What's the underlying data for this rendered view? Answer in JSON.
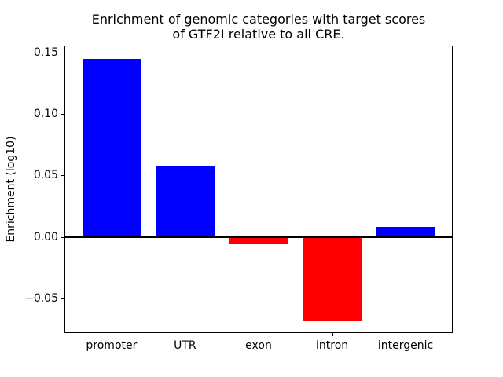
{
  "chart_data": {
    "type": "bar",
    "title": "Enrichment of genomic categories with target scores\nof GTF2I relative to all CRE.",
    "xlabel": "",
    "ylabel": "Enrichment (log10)",
    "categories": [
      "promoter",
      "UTR",
      "exon",
      "intron",
      "intergenic"
    ],
    "values": [
      0.145,
      0.058,
      -0.006,
      -0.069,
      0.008
    ],
    "bar_colors": [
      "#0000ff",
      "#0000ff",
      "#ff0000",
      "#ff0000",
      "#0000ff"
    ],
    "positive_color": "#0000ff",
    "negative_color": "#ff0000",
    "bar_width": 0.8,
    "ylim": [
      -0.0785,
      0.156
    ],
    "xlim": [
      -0.64,
      4.64
    ],
    "yticks": [
      0.15,
      0.1,
      0.05,
      0.0,
      -0.05
    ],
    "ytick_labels": [
      "0.15",
      "0.10",
      "0.05",
      "0.00",
      "−0.05"
    ],
    "zero_line": {
      "y": 0,
      "color": "#000000",
      "linewidth": 3
    },
    "grid": false,
    "legend": false,
    "plot_border_color": "#000000",
    "background_color": "#ffffff"
  }
}
